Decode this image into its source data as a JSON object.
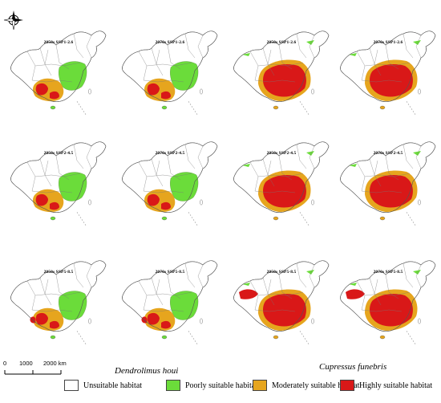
{
  "colors": {
    "unsuitable": "#ffffff",
    "poorly": "#6bdc3a",
    "moderately": "#e6a51e",
    "highly": "#d91818"
  },
  "compass_icon": "north-arrow-compass-icon",
  "panels": [
    {
      "id": "dh-2050-126",
      "label": "2050s SSP1-2.6",
      "species": "dh"
    },
    {
      "id": "dh-2070-126",
      "label": "2070s SSP1-2.6",
      "species": "dh"
    },
    {
      "id": "cf-2050-126",
      "label": "2050s SSP1-2.6",
      "species": "cf"
    },
    {
      "id": "cf-2070-126",
      "label": "2070s SSP1-2.6",
      "species": "cf"
    },
    {
      "id": "dh-2050-245",
      "label": "2050s SSP2-4.5",
      "species": "dh"
    },
    {
      "id": "dh-2070-245",
      "label": "2070s SSP2-4.5",
      "species": "dh"
    },
    {
      "id": "cf-2050-245",
      "label": "2050s SSP2-4.5",
      "species": "cf"
    },
    {
      "id": "cf-2070-245",
      "label": "2070s SSP2-4.5",
      "species": "cf"
    },
    {
      "id": "dh-2050-585",
      "label": "2050s SSP5-8.5",
      "species": "dh"
    },
    {
      "id": "dh-2070-585",
      "label": "2070s SSP5-8.5",
      "species": "dh"
    },
    {
      "id": "cf-2050-585",
      "label": "2050s SSP5-8.5",
      "species": "cf"
    },
    {
      "id": "cf-2070-585",
      "label": "2070s SSP5-8.5",
      "species": "cf"
    }
  ],
  "species_labels": {
    "left": "Dendrolimus houi",
    "right": "Cupressus funebris"
  },
  "scale_bar": {
    "ticks": [
      "0",
      "1000",
      "2000 km"
    ]
  },
  "legend": [
    {
      "key": "unsuitable",
      "label": "Unsuitable habitat"
    },
    {
      "key": "poorly",
      "label": "Poorly suitable habitat"
    },
    {
      "key": "moderately",
      "label": "Moderately suitable habitat"
    },
    {
      "key": "highly",
      "label": "Highly suitable habitat"
    }
  ]
}
